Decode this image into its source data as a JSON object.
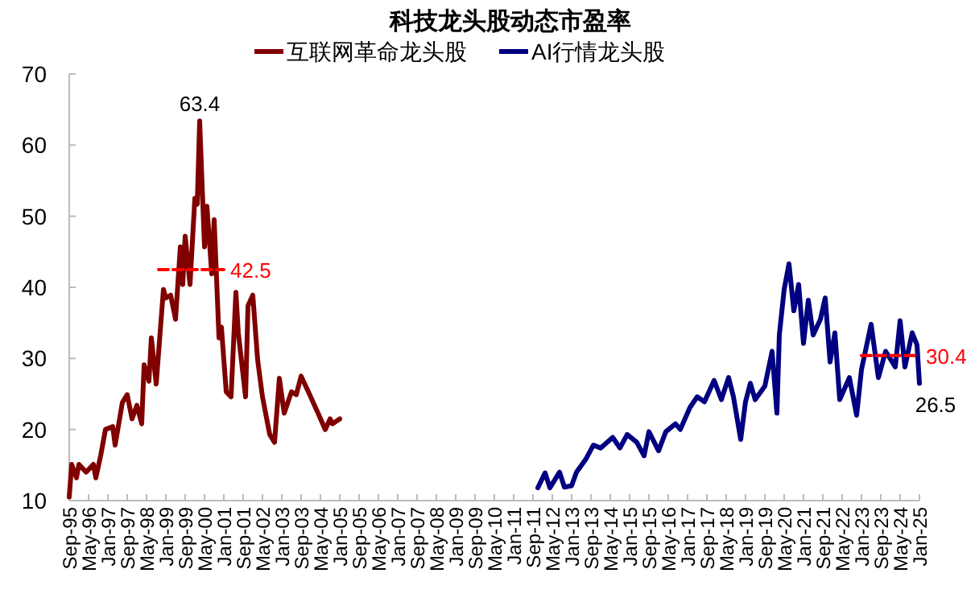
{
  "chart_data": {
    "type": "line",
    "title": "科技龙头股动态市盈率",
    "legend": "top",
    "grid": false,
    "xlim": [
      "1995-09",
      "2025-01"
    ],
    "ylim": [
      10,
      70
    ],
    "yticks": [
      10,
      20,
      30,
      40,
      50,
      60,
      70
    ],
    "xticks": [
      {
        "value": "1995-09",
        "label": "Sep-95"
      },
      {
        "value": "1996-05",
        "label": "May-96"
      },
      {
        "value": "1997-01",
        "label": "Jan-97"
      },
      {
        "value": "1997-09",
        "label": "Sep-97"
      },
      {
        "value": "1998-05",
        "label": "May-98"
      },
      {
        "value": "1999-01",
        "label": "Jan-99"
      },
      {
        "value": "1999-09",
        "label": "Sep-99"
      },
      {
        "value": "2000-05",
        "label": "May-00"
      },
      {
        "value": "2001-01",
        "label": "Jan-01"
      },
      {
        "value": "2001-09",
        "label": "Sep-01"
      },
      {
        "value": "2002-05",
        "label": "May-02"
      },
      {
        "value": "2003-01",
        "label": "Jan-03"
      },
      {
        "value": "2003-09",
        "label": "Sep-03"
      },
      {
        "value": "2004-05",
        "label": "May-04"
      },
      {
        "value": "2005-01",
        "label": "Jan-05"
      },
      {
        "value": "2005-09",
        "label": "Sep-05"
      },
      {
        "value": "2006-05",
        "label": "May-06"
      },
      {
        "value": "2007-01",
        "label": "Jan-07"
      },
      {
        "value": "2007-09",
        "label": "Sep-07"
      },
      {
        "value": "2008-05",
        "label": "May-08"
      },
      {
        "value": "2009-01",
        "label": "Jan-09"
      },
      {
        "value": "2009-09",
        "label": "Sep-09"
      },
      {
        "value": "2010-05",
        "label": "May-10"
      },
      {
        "value": "2011-01",
        "label": "Jan-11"
      },
      {
        "value": "2011-09",
        "label": "Sep-11"
      },
      {
        "value": "2012-05",
        "label": "May-12"
      },
      {
        "value": "2013-01",
        "label": "Jan-13"
      },
      {
        "value": "2013-09",
        "label": "Sep-13"
      },
      {
        "value": "2014-05",
        "label": "May-14"
      },
      {
        "value": "2015-01",
        "label": "Jan-15"
      },
      {
        "value": "2015-09",
        "label": "Sep-15"
      },
      {
        "value": "2016-05",
        "label": "May-16"
      },
      {
        "value": "2017-01",
        "label": "Jan-17"
      },
      {
        "value": "2017-09",
        "label": "Sep-17"
      },
      {
        "value": "2018-05",
        "label": "May-18"
      },
      {
        "value": "2019-01",
        "label": "Jan-19"
      },
      {
        "value": "2019-09",
        "label": "Sep-19"
      },
      {
        "value": "2020-05",
        "label": "May-20"
      },
      {
        "value": "2021-01",
        "label": "Jan-21"
      },
      {
        "value": "2021-09",
        "label": "Sep-21"
      },
      {
        "value": "2022-05",
        "label": "May-22"
      },
      {
        "value": "2023-01",
        "label": "Jan-23"
      },
      {
        "value": "2023-09",
        "label": "Sep-23"
      },
      {
        "value": "2024-05",
        "label": "May-24"
      },
      {
        "value": "2025-01",
        "label": "Jan-25"
      }
    ],
    "series": [
      {
        "name": "互联网革命龙头股",
        "color": "#800000",
        "x": [
          "1995-09",
          "1995-10",
          "1995-12",
          "1996-01",
          "1996-04",
          "1996-07",
          "1996-08",
          "1996-10",
          "1996-12",
          "1997-03",
          "1997-04",
          "1997-07",
          "1997-09",
          "1997-11",
          "1998-01",
          "1998-03",
          "1998-04",
          "1998-06",
          "1998-07",
          "1998-09",
          "1998-12",
          "1999-01",
          "1999-03",
          "1999-05",
          "1999-07",
          "1999-08",
          "1999-09",
          "1999-11",
          "2000-01",
          "2000-02",
          "2000-03",
          "2000-05",
          "2000-06",
          "2000-08",
          "2000-09",
          "2000-11",
          "2000-12",
          "2001-02",
          "2001-04",
          "2001-06",
          "2001-07",
          "2001-10",
          "2001-11",
          "2002-01",
          "2002-03",
          "2002-05",
          "2002-08",
          "2002-10",
          "2002-12",
          "2003-02",
          "2003-05",
          "2003-07",
          "2003-09",
          "2003-12",
          "2004-04",
          "2004-07",
          "2004-09",
          "2004-10",
          "2005-01"
        ],
        "values": [
          10.5,
          15.1,
          13.2,
          15.1,
          14.0,
          15.1,
          13.2,
          16.3,
          20.0,
          20.4,
          17.8,
          23.8,
          24.9,
          21.5,
          23.4,
          20.8,
          29.1,
          26.8,
          32.9,
          26.4,
          39.7,
          38.5,
          38.9,
          35.5,
          45.7,
          40.4,
          47.2,
          40.4,
          52.5,
          51.7,
          63.4,
          45.7,
          51.4,
          41.9,
          49.5,
          32.9,
          34.4,
          25.3,
          24.6,
          39.3,
          33.6,
          24.6,
          37.4,
          38.9,
          29.8,
          24.6,
          19.3,
          18.2,
          27.2,
          22.3,
          25.3,
          24.9,
          27.5,
          25.3,
          22.3,
          20.0,
          21.5,
          20.8,
          21.5
        ],
        "value_labels": [
          null,
          null,
          null,
          null,
          null,
          null,
          null,
          null,
          null,
          null,
          null,
          null,
          null,
          null,
          null,
          null,
          null,
          null,
          null,
          null,
          null,
          null,
          null,
          null,
          null,
          null,
          null,
          null,
          null,
          null,
          "63.4",
          null,
          null,
          null,
          null,
          null,
          null,
          null,
          null,
          null,
          null,
          null,
          null,
          null,
          null,
          null,
          null,
          null,
          null,
          null,
          null,
          null,
          null,
          null,
          null,
          null,
          null,
          null,
          null
        ]
      },
      {
        "name": "AI行情龙头股",
        "color": "#000080",
        "x": [
          "2011-11",
          "2012-02",
          "2012-04",
          "2012-08",
          "2012-10",
          "2013-01",
          "2013-03",
          "2013-07",
          "2013-10",
          "2014-01",
          "2014-06",
          "2014-09",
          "2014-12",
          "2015-04",
          "2015-07",
          "2015-09",
          "2016-01",
          "2016-04",
          "2016-08",
          "2016-10",
          "2017-02",
          "2017-05",
          "2017-08",
          "2017-12",
          "2018-03",
          "2018-06",
          "2018-08",
          "2018-11",
          "2019-01",
          "2019-03",
          "2019-05",
          "2019-09",
          "2019-12",
          "2020-02",
          "2020-03",
          "2020-05",
          "2020-07",
          "2020-09",
          "2020-11",
          "2021-01",
          "2021-03",
          "2021-05",
          "2021-08",
          "2021-10",
          "2021-12",
          "2022-02",
          "2022-04",
          "2022-08",
          "2022-11",
          "2023-01",
          "2023-05",
          "2023-08",
          "2023-11",
          "2024-03",
          "2024-05",
          "2024-07",
          "2024-10",
          "2024-12",
          "2025-01"
        ],
        "values": [
          11.8,
          13.9,
          11.8,
          14.0,
          11.9,
          12.1,
          14.0,
          15.9,
          17.8,
          17.4,
          18.9,
          17.4,
          19.3,
          18.2,
          16.3,
          19.7,
          17.0,
          19.7,
          20.8,
          20.0,
          23.1,
          24.6,
          23.9,
          26.9,
          24.2,
          27.3,
          24.6,
          18.6,
          23.9,
          26.5,
          24.2,
          26.1,
          31.0,
          22.3,
          33.3,
          39.7,
          43.3,
          36.7,
          40.4,
          32.1,
          38.2,
          33.3,
          35.5,
          38.5,
          29.5,
          33.6,
          24.2,
          27.3,
          22.0,
          28.4,
          34.8,
          27.3,
          31.0,
          28.8,
          35.3,
          28.8,
          33.6,
          31.9,
          26.5
        ],
        "value_labels": [
          null,
          null,
          null,
          null,
          null,
          null,
          null,
          null,
          null,
          null,
          null,
          null,
          null,
          null,
          null,
          null,
          null,
          null,
          null,
          null,
          null,
          null,
          null,
          null,
          null,
          null,
          null,
          null,
          null,
          null,
          null,
          null,
          null,
          null,
          null,
          null,
          null,
          null,
          null,
          null,
          null,
          null,
          null,
          null,
          null,
          null,
          null,
          null,
          null,
          null,
          null,
          null,
          null,
          null,
          null,
          null,
          null,
          null,
          "26.5"
        ]
      },
      {
        "color": "#ff0000",
        "line_style": "dashed",
        "x": [
          "1998-10",
          "2001-01"
        ],
        "values": [
          42.5,
          42.5
        ],
        "value_labels": [
          null,
          "42.5"
        ]
      },
      {
        "color": "#ff0000",
        "line_style": "dashed",
        "x": [
          "2023-01",
          "2025-01"
        ],
        "values": [
          30.4,
          30.4
        ],
        "value_labels": [
          null,
          "30.4"
        ]
      }
    ]
  }
}
